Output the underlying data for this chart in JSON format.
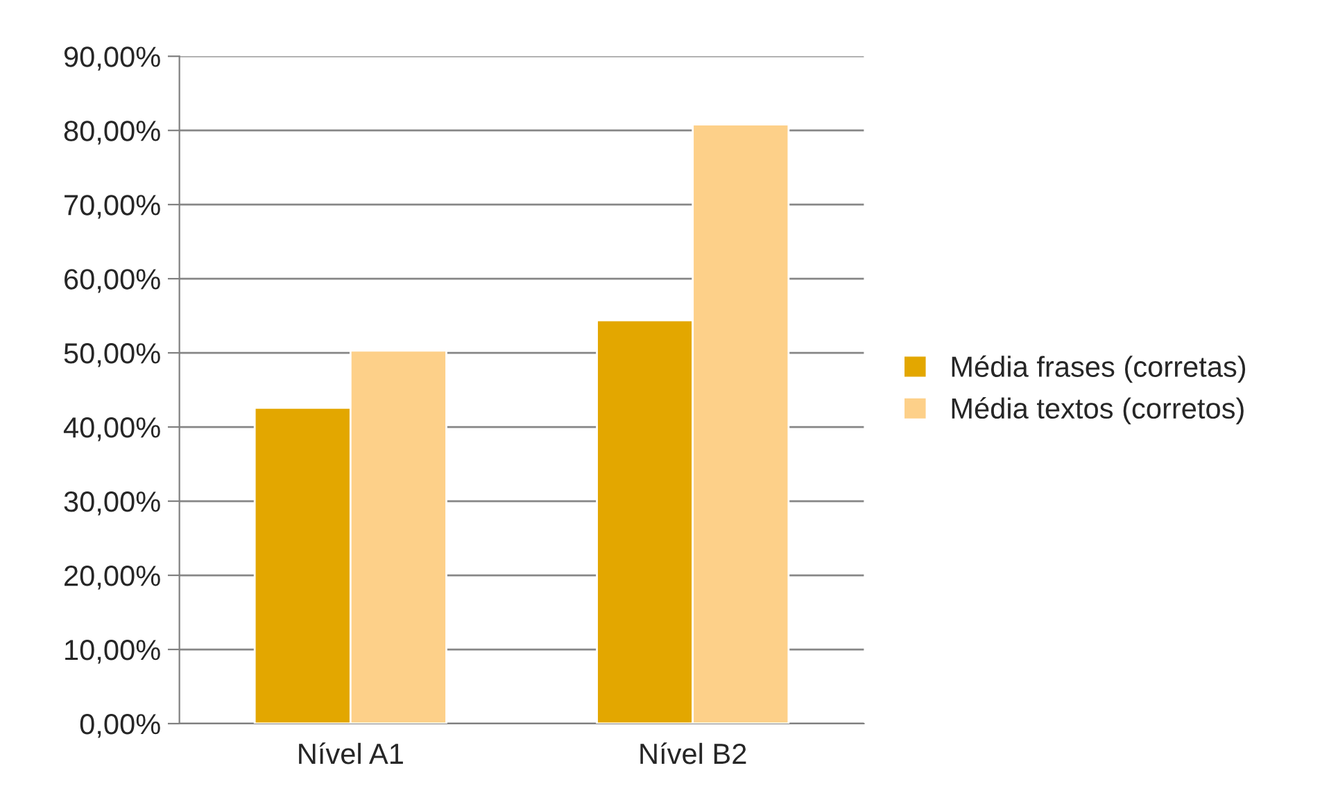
{
  "chart_data": {
    "type": "bar",
    "categories": [
      "Nível A1",
      "Nível B2"
    ],
    "series": [
      {
        "name": "Média frases (corretas)",
        "color": "#e3a700",
        "values": [
          42.6,
          54.4
        ]
      },
      {
        "name": "Média textos (corretos)",
        "color": "#fdd089",
        "values": [
          50.3,
          80.8
        ]
      }
    ],
    "ylim": [
      0,
      90
    ],
    "yticks": [
      {
        "value": 0,
        "label": "0,00%"
      },
      {
        "value": 10,
        "label": "10,00%"
      },
      {
        "value": 20,
        "label": "20,00%"
      },
      {
        "value": 30,
        "label": "30,00%"
      },
      {
        "value": 40,
        "label": "40,00%"
      },
      {
        "value": 50,
        "label": "50,00%"
      },
      {
        "value": 60,
        "label": "60,00%"
      },
      {
        "value": 70,
        "label": "70,00%"
      },
      {
        "value": 80,
        "label": "80,00%"
      },
      {
        "value": 90,
        "label": "90,00%"
      }
    ],
    "grid": "y",
    "legend": "right"
  }
}
